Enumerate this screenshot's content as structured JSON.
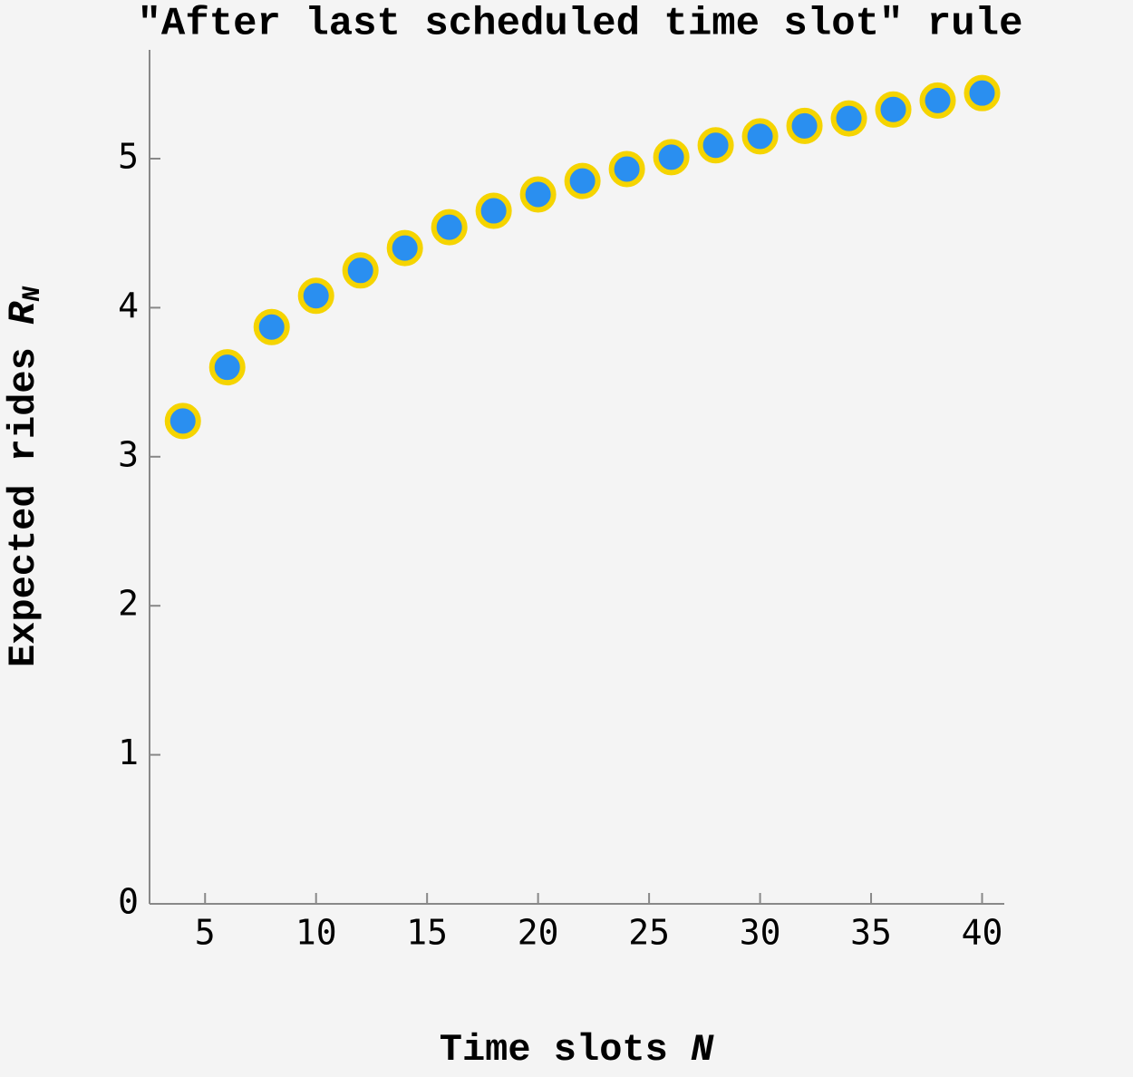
{
  "chart_data": {
    "type": "scatter",
    "title": "\"After last scheduled time slot\" rule",
    "xlabel": [
      "Time slots ",
      "N"
    ],
    "ylabel": [
      "Expected rides ",
      "R",
      "N"
    ],
    "x": [
      4,
      6,
      8,
      10,
      12,
      14,
      16,
      18,
      20,
      22,
      24,
      26,
      28,
      30,
      32,
      34,
      36,
      38,
      40
    ],
    "series": [
      {
        "color": "#2a8ff0",
        "edgecolor": "#f5d400",
        "values": [
          3.24,
          3.6,
          3.87,
          4.08,
          4.25,
          4.4,
          4.54,
          4.65,
          4.76,
          4.85,
          4.93,
          5.01,
          5.09,
          5.15,
          5.22,
          5.27,
          5.33,
          5.39,
          5.44
        ]
      }
    ],
    "xlim": [
      2.5,
      41
    ],
    "ylim": [
      0,
      5.73
    ],
    "xticks": [
      5,
      10,
      15,
      20,
      25,
      30,
      35,
      40
    ],
    "yticks": [
      0,
      1,
      2,
      3,
      4,
      5
    ]
  }
}
